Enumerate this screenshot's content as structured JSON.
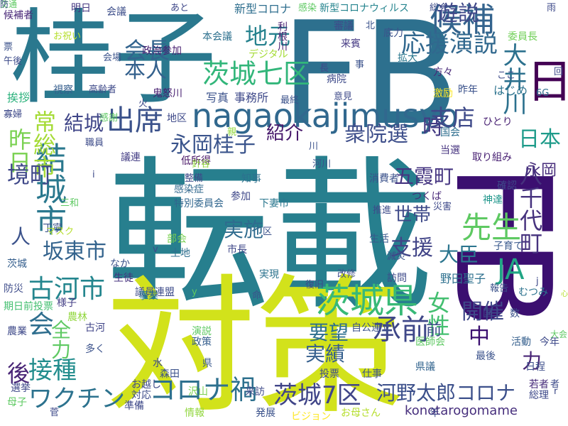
{
  "words": [
    {
      "text": "転載",
      "color": "#277f8e",
      "vertical": false
    },
    {
      "text": "対策",
      "color": "#d2e21b",
      "vertical": false
    },
    {
      "text": "FB",
      "color": "#2d708e",
      "vertical": false
    },
    {
      "text": "日",
      "color": "#440154",
      "vertical": true
    },
    {
      "text": "FB",
      "color": "#3b0f70",
      "vertical": true
    },
    {
      "text": "桂子",
      "color": "#2a788e",
      "vertical": false
    },
    {
      "text": "nagaokajimusyo",
      "color": "#31688e",
      "vertical": false
    },
    {
      "text": "茨城県",
      "color": "#38b977",
      "vertical": false
    },
    {
      "text": "茨城七区",
      "color": "#32b67a",
      "vertical": false
    },
    {
      "text": "先生",
      "color": "#5ec962",
      "vertical": false
    },
    {
      "text": "結城市",
      "color": "#2a788e",
      "vertical": true
    },
    {
      "text": "候補",
      "color": "#33638d",
      "vertical": false
    },
    {
      "text": "出席",
      "color": "#3b528b",
      "vertical": false
    },
    {
      "text": "応援演説",
      "color": "#31688e",
      "vertical": false
    },
    {
      "text": "遊説",
      "color": "#3f4788",
      "vertical": false
    },
    {
      "text": "会長",
      "color": "#32648e",
      "vertical": false
    },
    {
      "text": "地元",
      "color": "#26828e",
      "vertical": false
    },
    {
      "text": "本人",
      "color": "#34618d",
      "vertical": false
    },
    {
      "text": "大井川",
      "color": "#2c718e",
      "vertical": true
    },
    {
      "text": "結城",
      "color": "#404688",
      "vertical": false
    },
    {
      "text": "永岡桂子",
      "color": "#3a548c",
      "vertical": false
    },
    {
      "text": "衆院選",
      "color": "#3d4e8a",
      "vertical": false
    },
    {
      "text": "紹介",
      "color": "#481a6c",
      "vertical": false
    },
    {
      "text": "時",
      "color": "#443a83",
      "vertical": false
    },
    {
      "text": "支店",
      "color": "#3e4989",
      "vertical": false
    },
    {
      "text": "日本",
      "color": "#1e9b8a",
      "vertical": false
    },
    {
      "text": "常総市",
      "color": "#a5db36",
      "vertical": true
    },
    {
      "text": "昨日",
      "color": "#7ad151",
      "vertical": true
    },
    {
      "text": "五霞町",
      "color": "#453581",
      "vertical": false
    },
    {
      "text": "永岡",
      "color": "#472d7b",
      "vertical": false
    },
    {
      "text": "八千代町",
      "color": "#46327e",
      "vertical": true
    },
    {
      "text": "境町",
      "color": "#3f4889",
      "vertical": false
    },
    {
      "text": "世帯",
      "color": "#3e4a89",
      "vertical": false
    },
    {
      "text": "実施",
      "color": "#2f6b8e",
      "vertical": false
    },
    {
      "text": "人",
      "color": "#3b528b",
      "vertical": false
    },
    {
      "text": "坂東市",
      "color": "#33638d",
      "vertical": false
    },
    {
      "text": "支援",
      "color": "#414487",
      "vertical": false
    },
    {
      "text": "大臣",
      "color": "#2b758e",
      "vertical": false
    },
    {
      "text": "JA",
      "color": "#21a685",
      "vertical": false
    },
    {
      "text": "古河市",
      "color": "#24868e",
      "vertical": false
    },
    {
      "text": "女性",
      "color": "#44bf70",
      "vertical": true
    },
    {
      "text": "開催",
      "color": "#3f4889",
      "vertical": false
    },
    {
      "text": "会",
      "color": "#2e6e8e",
      "vertical": false
    },
    {
      "text": "全力",
      "color": "#5ec962",
      "vertical": true
    },
    {
      "text": "要望",
      "color": "#2e6f8e",
      "vertical": false
    },
    {
      "text": "中",
      "color": "#3b0f70",
      "vertical": false
    },
    {
      "text": "前",
      "color": "#3e4c8a",
      "vertical": false
    },
    {
      "text": "実績",
      "color": "#355f8d",
      "vertical": false
    },
    {
      "text": "承前",
      "color": "#3f4788",
      "vertical": false
    },
    {
      "text": "接種",
      "color": "#228d8d",
      "vertical": false
    },
    {
      "text": "後",
      "color": "#482576",
      "vertical": false
    },
    {
      "text": "力",
      "color": "#482475",
      "vertical": false
    },
    {
      "text": "茨城7区",
      "color": "#404588",
      "vertical": false
    },
    {
      "text": "河野太郎コロナ",
      "color": "#3c508b",
      "vertical": false
    },
    {
      "text": "ワクチン",
      "color": "#2c728e",
      "vertical": false
    },
    {
      "text": "コロナ禍",
      "color": "#2d708e",
      "vertical": false
    },
    {
      "text": "konotarogomame",
      "color": "#472f7d",
      "vertical": false
    },
    {
      "text": "新型コロナ",
      "color": "#2e6e8e",
      "vertical": false
    },
    {
      "text": "新型コロナウィルス",
      "color": "#25848e",
      "vertical": false
    },
    {
      "text": "会議",
      "color": "#3d4e8a",
      "vertical": false
    },
    {
      "text": "明日",
      "color": "#453781",
      "vertical": false
    },
    {
      "text": "候補者",
      "color": "#482777",
      "vertical": false
    },
    {
      "text": "本会議",
      "color": "#2d708e",
      "vertical": false
    },
    {
      "text": "利根川",
      "color": "#481f70",
      "vertical": true
    },
    {
      "text": "政治参加",
      "color": "#482071",
      "vertical": false
    },
    {
      "text": "デジタル",
      "color": "#a5db36",
      "vertical": false
    },
    {
      "text": "審議",
      "color": "#3e4c8a",
      "vertical": false
    },
    {
      "text": "来賓",
      "color": "#443983",
      "vertical": false
    },
    {
      "text": "底力",
      "color": "#3b528b",
      "vertical": false
    },
    {
      "text": "拡大",
      "color": "#2a778e",
      "vertical": false
    },
    {
      "text": "委員長",
      "color": "#70cf57",
      "vertical": false
    },
    {
      "text": "方々",
      "color": "#482878",
      "vertical": false
    },
    {
      "text": "視察",
      "color": "#355e8d",
      "vertical": false
    },
    {
      "text": "高齢者",
      "color": "#3e4a89",
      "vertical": false
    },
    {
      "text": "写真",
      "color": "#3b528b",
      "vertical": false
    },
    {
      "text": "事務所",
      "color": "#3e4989",
      "vertical": false
    },
    {
      "text": "鬼怒川",
      "color": "#482071",
      "vertical": false
    },
    {
      "text": "病院",
      "color": "#3e4a89",
      "vertical": false
    },
    {
      "text": "挨拶",
      "color": "#2db27d",
      "vertical": false
    },
    {
      "text": "激励",
      "color": "#fde725",
      "vertical": false
    },
    {
      "text": "昨年",
      "color": "#3b528b",
      "vertical": false
    },
    {
      "text": "はじめ",
      "color": "#2c738e",
      "vertical": false
    },
    {
      "text": "6G",
      "color": "#2e6d8e",
      "vertical": false
    },
    {
      "text": "地区",
      "color": "#3e4989",
      "vertical": false
    },
    {
      "text": "国会",
      "color": "#2e6e8e",
      "vertical": false
    },
    {
      "text": "ひとり",
      "color": "#482173",
      "vertical": false
    },
    {
      "text": "当選",
      "color": "#46337f",
      "vertical": false
    },
    {
      "text": "取り組み",
      "color": "#482173",
      "vertical": false
    },
    {
      "text": "議連",
      "color": "#433d84",
      "vertical": false
    },
    {
      "text": "低所得",
      "color": "#471365",
      "vertical": false
    },
    {
      "text": "知事",
      "color": "#2c718e",
      "vertical": false
    },
    {
      "text": "参加",
      "color": "#3f4889",
      "vertical": false
    },
    {
      "text": "感染症",
      "color": "#31688e",
      "vertical": false
    },
    {
      "text": "特別委員会",
      "color": "#31668e",
      "vertical": false
    },
    {
      "text": "消費者",
      "color": "#3b528b",
      "vertical": false
    },
    {
      "text": "確認",
      "color": "#3e4989",
      "vertical": false
    },
    {
      "text": "神達",
      "color": "#1f968b",
      "vertical": false
    },
    {
      "text": "つくば",
      "color": "#482878",
      "vertical": false
    },
    {
      "text": "下妻市",
      "color": "#2a778e",
      "vertical": false
    },
    {
      "text": "丁寧",
      "color": "#3b528b",
      "vertical": false
    },
    {
      "text": "部会",
      "color": "#7ad151",
      "vertical": false
    },
    {
      "text": "土地",
      "color": "#2e6e8e",
      "vertical": false
    },
    {
      "text": "市長",
      "color": "#3f4889",
      "vertical": false
    },
    {
      "text": "生活",
      "color": "#38588c",
      "vertical": false
    },
    {
      "text": "子育て",
      "color": "#38588c",
      "vertical": false
    },
    {
      "text": "茨城",
      "color": "#355f8d",
      "vertical": false
    },
    {
      "text": "なか",
      "color": "#3b528b",
      "vertical": false
    },
    {
      "text": "生徒",
      "color": "#46327e",
      "vertical": false
    },
    {
      "text": "実現",
      "color": "#2c738e",
      "vertical": false
    },
    {
      "text": "訪問",
      "color": "#3e4a89",
      "vertical": false
    },
    {
      "text": "野田聖子",
      "color": "#2d708e",
      "vertical": false
    },
    {
      "text": "防災",
      "color": "#3e4c8a",
      "vertical": false
    },
    {
      "text": "議員連盟",
      "color": "#3e4c8a",
      "vertical": false
    },
    {
      "text": "事業",
      "color": "#2a788e",
      "vertical": false
    },
    {
      "text": "むつみ",
      "color": "#2c728e",
      "vertical": false
    },
    {
      "text": "期日前投票",
      "color": "#44bf70",
      "vertical": false
    },
    {
      "text": "様子",
      "color": "#433e85",
      "vertical": false
    },
    {
      "text": "農林",
      "color": "#93d741",
      "vertical": false
    },
    {
      "text": "国",
      "color": "#3e4989",
      "vertical": false
    },
    {
      "text": "数",
      "color": "#3b528b",
      "vertical": false
    },
    {
      "text": "農業",
      "color": "#3e4989",
      "vertical": false
    },
    {
      "text": "古河",
      "color": "#404588",
      "vertical": false
    },
    {
      "text": "演説",
      "color": "#5ec962",
      "vertical": false
    },
    {
      "text": "政策",
      "color": "#355e8d",
      "vertical": false
    },
    {
      "text": "自公連立",
      "color": "#3b528b",
      "vertical": false
    },
    {
      "text": "活動",
      "color": "#355f8d",
      "vertical": false
    },
    {
      "text": "今年",
      "color": "#3e4a89",
      "vertical": false
    },
    {
      "text": "医師会",
      "color": "#5ec962",
      "vertical": false
    },
    {
      "text": "日程",
      "color": "#3d4e8a",
      "vertical": false
    },
    {
      "text": "多く",
      "color": "#3b528b",
      "vertical": false
    },
    {
      "text": "水",
      "color": "#3e4c8a",
      "vertical": false
    },
    {
      "text": "森田",
      "color": "#3b528b",
      "vertical": false
    },
    {
      "text": "県",
      "color": "#38588c",
      "vertical": false
    },
    {
      "text": "県議",
      "color": "#32648e",
      "vertical": false
    },
    {
      "text": "最後",
      "color": "#3b528b",
      "vertical": false
    },
    {
      "text": "選挙",
      "color": "#3f4889",
      "vertical": false
    },
    {
      "text": "お越し",
      "color": "#3e4989",
      "vertical": false
    },
    {
      "text": "投票",
      "color": "#3e4c8a",
      "vertical": false
    },
    {
      "text": "仕事",
      "color": "#3b528b",
      "vertical": false
    },
    {
      "text": "若者",
      "color": "#472c7a",
      "vertical": false
    },
    {
      "text": "総理",
      "color": "#3e4989",
      "vertical": false
    },
    {
      "text": "母子",
      "color": "#5ec962",
      "vertical": false
    },
    {
      "text": "対応",
      "color": "#3e4c8a",
      "vertical": false
    },
    {
      "text": "沢山",
      "color": "#7ad151",
      "vertical": false
    },
    {
      "text": "来訪",
      "color": "#3e4a89",
      "vertical": false
    },
    {
      "text": "準備",
      "color": "#3e4989",
      "vertical": false
    },
    {
      "text": "情報",
      "color": "#93d741",
      "vertical": false
    },
    {
      "text": "発展",
      "color": "#3b528b",
      "vertical": false
    },
    {
      "text": "お母さん",
      "color": "#b5de2b",
      "vertical": false
    },
    {
      "text": "ビジョン",
      "color": "#fde725",
      "vertical": false
    },
    {
      "text": "年",
      "color": "#3f4889",
      "vertical": false
    },
    {
      "text": "総会",
      "color": "#3e4c8a",
      "vertical": false
    },
    {
      "text": "雨",
      "color": "#3e4a89",
      "vertical": false
    },
    {
      "text": "北",
      "color": "#3b528b",
      "vertical": false
    },
    {
      "text": "長",
      "color": "#3e4989",
      "vertical": false
    },
    {
      "text": "意見",
      "color": "#3e4a89",
      "vertical": false
    },
    {
      "text": "会場",
      "color": "#3b528b",
      "vertical": false
    },
    {
      "text": "午後",
      "color": "#3e4c8a",
      "vertical": false
    },
    {
      "text": "票",
      "color": "#3b528b",
      "vertical": false
    },
    {
      "text": "お祝い",
      "color": "#b5de2b",
      "vertical": false
    },
    {
      "text": "あと",
      "color": "#3f4889",
      "vertical": false
    },
    {
      "text": "感染",
      "color": "#5ec962",
      "vertical": false
    },
    {
      "text": "ここ",
      "color": "#3e4c8a",
      "vertical": false
    },
    {
      "text": "回",
      "color": "#3e4989",
      "vertical": false
    },
    {
      "text": "川",
      "color": "#3b528b",
      "vertical": false
    },
    {
      "text": "寡婦",
      "color": "#3e4989",
      "vertical": false
    },
    {
      "text": "職員",
      "color": "#3e4c8a",
      "vertical": false
    },
    {
      "text": "感謝",
      "color": "#5ec962",
      "vertical": false
    },
    {
      "text": "針谷",
      "color": "#93d741",
      "vertical": false
    },
    {
      "text": "河川",
      "color": "#3b528b",
      "vertical": false
    },
    {
      "text": "三和",
      "color": "#5ec962",
      "vertical": false
    },
    {
      "text": "i",
      "color": "#3e4a89",
      "vertical": false
    },
    {
      "text": "j",
      "color": "#3e4989",
      "vertical": false
    },
    {
      "text": "y",
      "color": "#5ec962",
      "vertical": false
    },
    {
      "text": "r",
      "color": "#3e4a89",
      "vertical": false
    },
    {
      "text": "v",
      "color": "#3e4c8a",
      "vertical": false
    },
    {
      "text": "命",
      "color": "#3b528b",
      "vertical": false
    },
    {
      "text": "減災",
      "color": "#3b528b",
      "vertical": false
    },
    {
      "text": "復旧",
      "color": "#3e4989",
      "vertical": false
    },
    {
      "text": "改修",
      "color": "#3e4c8a",
      "vertical": false
    },
    {
      "text": "報告",
      "color": "#3b528b",
      "vertical": false
    },
    {
      "text": "推進",
      "color": "#3e4a89",
      "vertical": false
    },
    {
      "text": "災害",
      "color": "#3e4989",
      "vertical": false
    },
    {
      "text": "区",
      "color": "#3b528b",
      "vertical": false
    },
    {
      "text": "マスク",
      "color": "#b5de2b",
      "vertical": false
    },
    {
      "text": "菅",
      "color": "#3e4989",
      "vertical": false
    },
    {
      "text": "者",
      "color": "#3e4c8a",
      "vertical": false
    },
    {
      "text": "事",
      "color": "#3b528b",
      "vertical": false
    },
    {
      "text": "整備",
      "color": "#3e4a89",
      "vertical": false
    },
    {
      "text": "大会",
      "color": "#5ec962",
      "vertical": false
    },
    {
      "text": "火",
      "color": "#3e4989",
      "vertical": false
    },
    {
      "text": "最終",
      "color": "#3b528b",
      "vertical": false
    },
    {
      "text": "親",
      "color": "#93d741",
      "vertical": false
    },
    {
      "text": "心",
      "color": "#b5de2b",
      "vertical": false
    },
    {
      "text": "交通",
      "color": "#5ec962",
      "vertical": false
    },
    {
      "text": "防",
      "color": "#3e4c8a",
      "vertical": false
    }
  ]
}
